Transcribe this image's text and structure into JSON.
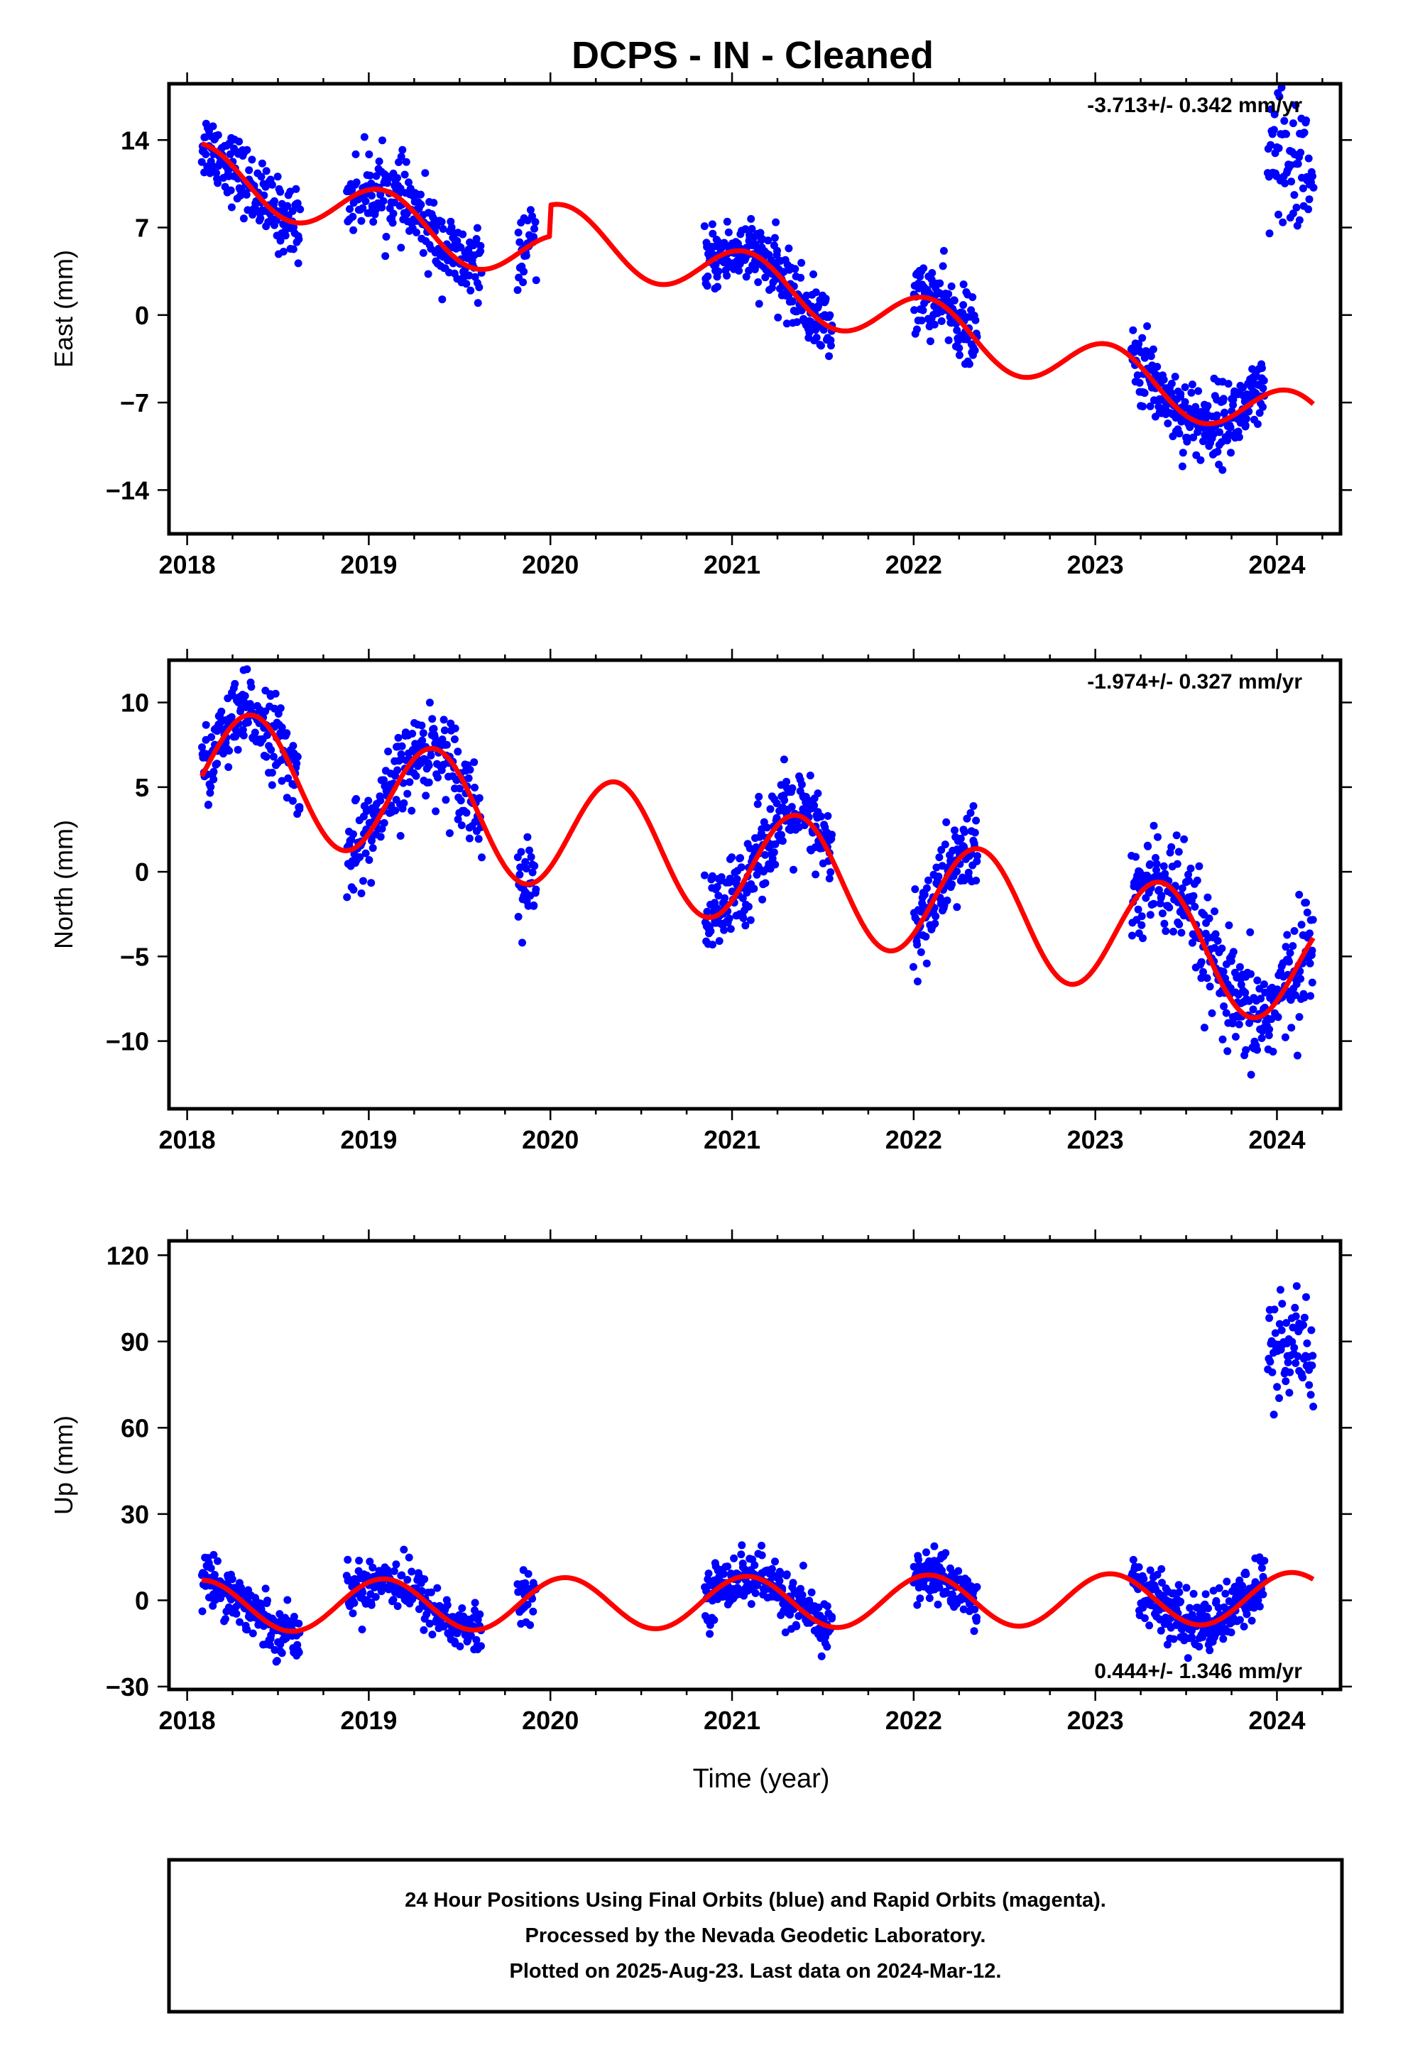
{
  "chart_data": {
    "title": "DCPS  - IN - Cleaned",
    "xlabel": "Time (year)",
    "x_ticks": [
      2018,
      2019,
      2020,
      2021,
      2022,
      2023,
      2024
    ],
    "xlim": [
      2017.9,
      2024.35
    ],
    "colors": {
      "final_orbits": "#0000ff",
      "model": "#ff0000"
    },
    "footer_lines": [
      "24 Hour Positions Using Final Orbits (blue) and Rapid Orbits (magenta).",
      "Processed by the Nevada Geodetic Laboratory.",
      "Plotted on 2025-Aug-23. Last data on 2024-Mar-12."
    ],
    "panels": [
      {
        "type": "scatter",
        "ylabel": "East (mm)",
        "ylim": [
          -17.5,
          18.5
        ],
        "y_ticks": [
          -14,
          -7,
          0,
          7,
          14
        ],
        "y_tick_labels": [
          "−14",
          "−7",
          "0",
          "7",
          "14"
        ],
        "rate_label": "-3.713+/- 0.342 mm/yr",
        "rate_position": "top-right",
        "data_segments": [
          {
            "start": 2018.08,
            "end": 2018.62,
            "n": 170,
            "noise": 1.4
          },
          {
            "start": 2018.88,
            "end": 2019.62,
            "n": 220,
            "noise": 1.5
          },
          {
            "start": 2019.82,
            "end": 2019.92,
            "n": 30,
            "noise": 1.2
          },
          {
            "start": 2020.85,
            "end": 2021.55,
            "n": 240,
            "noise": 1.3
          },
          {
            "start": 2022.0,
            "end": 2022.35,
            "n": 120,
            "noise": 1.4
          },
          {
            "start": 2023.2,
            "end": 2023.93,
            "n": 260,
            "noise": 1.5
          },
          {
            "start": 2023.95,
            "end": 2024.2,
            "n": 70,
            "center": 12,
            "noise": 3
          }
        ],
        "model": {
          "start": 2018.08,
          "end": 2024.2,
          "offset": 11.5,
          "rate": -3.713,
          "amp": 2.2,
          "phase": 0.08,
          "offsets": [
            {
              "at": 2020.0,
              "shift": 2.5
            }
          ]
        }
      },
      {
        "type": "scatter",
        "ylabel": "North (mm)",
        "ylim": [
          -14,
          12.5
        ],
        "y_ticks": [
          -10,
          -5,
          0,
          5,
          10
        ],
        "y_tick_labels": [
          "−10",
          "−5",
          "0",
          "5",
          "10"
        ],
        "rate_label": "-1.974+/- 0.327 mm/yr",
        "rate_position": "top-right",
        "data_segments": [
          {
            "start": 2018.08,
            "end": 2018.62,
            "n": 170,
            "noise": 1.2
          },
          {
            "start": 2018.88,
            "end": 2019.62,
            "n": 220,
            "noise": 1.3
          },
          {
            "start": 2019.82,
            "end": 2019.92,
            "n": 30,
            "noise": 1.2
          },
          {
            "start": 2020.85,
            "end": 2021.55,
            "n": 240,
            "noise": 1.3
          },
          {
            "start": 2022.0,
            "end": 2022.35,
            "n": 120,
            "noise": 1.3
          },
          {
            "start": 2023.2,
            "end": 2024.2,
            "n": 320,
            "noise": 1.6
          }
        ],
        "model": {
          "start": 2018.08,
          "end": 2024.2,
          "offset": 6.3,
          "rate": -1.974,
          "amp": 3.5,
          "phase": 0.36,
          "offsets": []
        }
      },
      {
        "type": "scatter",
        "ylabel": "Up (mm)",
        "ylim": [
          -31,
          125
        ],
        "y_ticks": [
          -30,
          0,
          30,
          60,
          90,
          120
        ],
        "y_tick_labels": [
          "−30",
          "0",
          "30",
          "60",
          "90",
          "120"
        ],
        "rate_label": "0.444+/- 1.346 mm/yr",
        "rate_position": "bottom-right",
        "data_segments": [
          {
            "start": 2018.08,
            "end": 2018.62,
            "n": 170,
            "noise": 4.5
          },
          {
            "start": 2018.88,
            "end": 2019.62,
            "n": 220,
            "noise": 4.5
          },
          {
            "start": 2019.82,
            "end": 2019.92,
            "n": 30,
            "noise": 4
          },
          {
            "start": 2020.85,
            "end": 2021.55,
            "n": 240,
            "noise": 4.5
          },
          {
            "start": 2022.0,
            "end": 2022.35,
            "n": 120,
            "noise": 4.5
          },
          {
            "start": 2023.2,
            "end": 2023.93,
            "n": 260,
            "noise": 5
          },
          {
            "start": 2023.95,
            "end": 2024.2,
            "n": 70,
            "center": 88,
            "noise": 12
          }
        ],
        "model": {
          "start": 2018.08,
          "end": 2024.2,
          "offset": -2,
          "rate": 0.444,
          "amp": 9,
          "phase": 0.08,
          "offsets": []
        }
      }
    ]
  }
}
